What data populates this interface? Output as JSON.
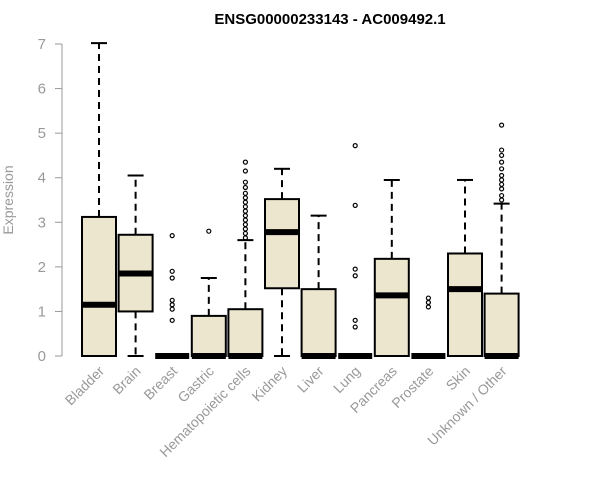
{
  "chart_data": {
    "type": "boxplot",
    "title": "ENSG00000233143 - AC009492.1",
    "xlabel": "",
    "ylabel": "Expression",
    "ylim": [
      0,
      7
    ],
    "yticks": [
      0,
      1,
      2,
      3,
      4,
      5,
      6,
      7
    ],
    "grid": false,
    "colors": {
      "box_fill": "#ede6cf",
      "stroke": "#000000",
      "axis": "#999999"
    },
    "categories": [
      "Bladder",
      "Brain",
      "Breast",
      "Gastric",
      "Hematopoietic cells",
      "Kidney",
      "Liver",
      "Lung",
      "Pancreas",
      "Prostate",
      "Skin",
      "Unknown / Other"
    ],
    "boxes": [
      {
        "min": 0,
        "q1": 0,
        "median": 1.15,
        "q3": 3.12,
        "max": 7.02,
        "outliers": []
      },
      {
        "min": 0,
        "q1": 1.0,
        "median": 1.85,
        "q3": 2.72,
        "max": 4.05,
        "outliers": []
      },
      {
        "min": 0,
        "q1": 0,
        "median": 0,
        "q3": 0,
        "max": 0,
        "outliers": [
          0.8,
          1.05,
          1.15,
          1.25,
          1.75,
          1.9,
          2.7
        ]
      },
      {
        "min": 0,
        "q1": 0,
        "median": 0,
        "q3": 0.9,
        "max": 1.75,
        "outliers": [
          2.8
        ]
      },
      {
        "min": 0,
        "q1": 0,
        "median": 0,
        "q3": 1.05,
        "max": 2.6,
        "outliers": [
          2.65,
          2.75,
          2.85,
          2.95,
          3.05,
          3.15,
          3.25,
          3.35,
          3.45,
          3.55,
          3.65,
          3.78,
          3.9,
          4.15,
          4.35
        ]
      },
      {
        "min": 0,
        "q1": 1.52,
        "median": 2.78,
        "q3": 3.52,
        "max": 4.2,
        "outliers": []
      },
      {
        "min": 0,
        "q1": 0,
        "median": 0,
        "q3": 1.5,
        "max": 3.15,
        "outliers": []
      },
      {
        "min": 0,
        "q1": 0,
        "median": 0,
        "q3": 0,
        "max": 0,
        "outliers": [
          0.65,
          0.8,
          1.8,
          1.95,
          3.38,
          4.72
        ]
      },
      {
        "min": 0,
        "q1": 0,
        "median": 1.36,
        "q3": 2.18,
        "max": 3.95,
        "outliers": []
      },
      {
        "min": 0,
        "q1": 0,
        "median": 0,
        "q3": 0,
        "max": 0,
        "outliers": [
          1.1,
          1.2,
          1.3
        ]
      },
      {
        "min": 0,
        "q1": 0,
        "median": 1.5,
        "q3": 2.3,
        "max": 3.95,
        "outliers": []
      },
      {
        "min": 0,
        "q1": 0,
        "median": 0,
        "q3": 1.4,
        "max": 3.42,
        "outliers": [
          3.5,
          3.6,
          3.75,
          3.85,
          3.95,
          4.05,
          4.2,
          4.35,
          4.5,
          4.62,
          5.18
        ]
      }
    ]
  }
}
